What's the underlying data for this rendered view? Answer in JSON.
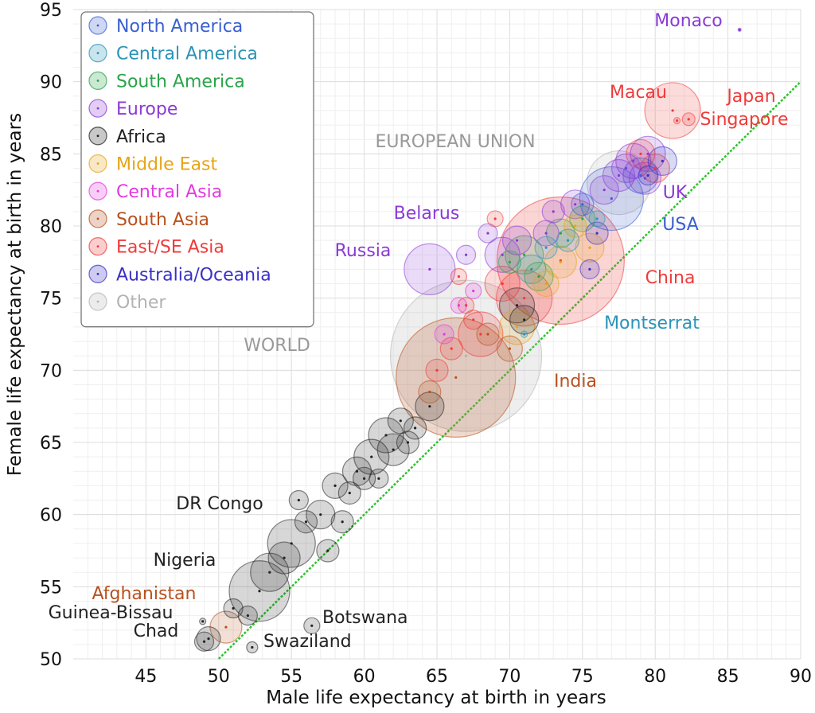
{
  "chart_data": {
    "type": "scatter",
    "title": "",
    "xlabel": "Male life expectancy at birth in years",
    "ylabel": "Female life expectancy at birth in years",
    "xlim": [
      40,
      90
    ],
    "ylim": [
      50,
      95
    ],
    "x_ticks": [
      "45",
      "50",
      "55",
      "60",
      "65",
      "70",
      "75",
      "80",
      "85",
      "90"
    ],
    "y_ticks": [
      "50",
      "55",
      "60",
      "65",
      "70",
      "75",
      "80",
      "85",
      "90",
      "95"
    ],
    "grid": true,
    "legend_position": "top-left",
    "reference_line": {
      "label": "",
      "x": [
        50,
        90
      ],
      "y": [
        50,
        90
      ],
      "color": "#2ec42e"
    },
    "legend": [
      {
        "name": "North America",
        "color": "#3a5fd0"
      },
      {
        "name": "Central America",
        "color": "#2b93b8"
      },
      {
        "name": "South America",
        "color": "#2aa44a"
      },
      {
        "name": "Europe",
        "color": "#8a3ad6"
      },
      {
        "name": "Africa",
        "color": "#222222"
      },
      {
        "name": "Middle East",
        "color": "#e6a417"
      },
      {
        "name": "Central Asia",
        "color": "#e23ae0"
      },
      {
        "name": "South Asia",
        "color": "#b8511e"
      },
      {
        "name": "East/SE Asia",
        "color": "#ef3a3a"
      },
      {
        "name": "Australia/Oceania",
        "color": "#3a30c8"
      },
      {
        "name": "Other",
        "color": "#b3b3b3"
      }
    ],
    "labeled_points": [
      {
        "label": "WORLD",
        "region": "Other",
        "x": 67.0,
        "y": 71.0,
        "r": 95,
        "color": "#b3b3b3"
      },
      {
        "label": "EUROPEAN UNION",
        "region": "Other",
        "x": 77.5,
        "y": 83.0,
        "r": 40,
        "color": "#b3b3b3"
      },
      {
        "label": "India",
        "region": "South Asia",
        "x": 66.3,
        "y": 69.5,
        "r": 75,
        "color": "#b8511e"
      },
      {
        "label": "China",
        "region": "East/SE Asia",
        "x": 73.5,
        "y": 77.6,
        "r": 80,
        "color": "#ef3a3a"
      },
      {
        "label": "USA",
        "region": "North America",
        "x": 77.0,
        "y": 81.9,
        "r": 40,
        "color": "#3a5fd0"
      },
      {
        "label": "UK",
        "region": "Europe",
        "x": 79.3,
        "y": 83.3,
        "r": 20,
        "color": "#8a3ad6"
      },
      {
        "label": "Russia",
        "region": "Europe",
        "x": 64.5,
        "y": 77.0,
        "r": 32,
        "color": "#8a3ad6"
      },
      {
        "label": "Belarus",
        "region": "Europe",
        "x": 67.0,
        "y": 78.0,
        "r": 12,
        "color": "#8a3ad6"
      },
      {
        "label": "Monaco",
        "region": "Europe",
        "x": 85.8,
        "y": 93.6,
        "r": 2,
        "color": "#8a3ad6"
      },
      {
        "label": "Macau",
        "region": "East/SE Asia",
        "x": 81.5,
        "y": 87.3,
        "r": 4,
        "color": "#ef3a3a"
      },
      {
        "label": "Japan",
        "region": "East/SE Asia",
        "x": 81.2,
        "y": 88.0,
        "r": 35,
        "color": "#ef3a3a"
      },
      {
        "label": "Singapore",
        "region": "East/SE Asia",
        "x": 82.3,
        "y": 87.4,
        "r": 8,
        "color": "#ef3a3a"
      },
      {
        "label": "Montserrat",
        "region": "Central America",
        "x": 71.0,
        "y": 72.5,
        "r": 4,
        "color": "#2b93b8"
      },
      {
        "label": "DR Congo",
        "region": "Africa",
        "x": 55.0,
        "y": 58.0,
        "r": 30,
        "color": "#222222"
      },
      {
        "label": "Nigeria",
        "region": "Africa",
        "x": 52.8,
        "y": 54.7,
        "r": 38,
        "color": "#222222"
      },
      {
        "label": "Afghanistan",
        "region": "South Asia",
        "x": 50.5,
        "y": 52.2,
        "r": 20,
        "color": "#b8511e"
      },
      {
        "label": "Guinea-Bissau",
        "region": "Africa",
        "x": 48.9,
        "y": 52.6,
        "r": 4,
        "color": "#222222"
      },
      {
        "label": "Chad",
        "region": "Africa",
        "x": 49.3,
        "y": 51.4,
        "r": 15,
        "color": "#222222"
      },
      {
        "label": "Botswana",
        "region": "Africa",
        "x": 56.4,
        "y": 52.3,
        "r": 10,
        "color": "#222222"
      },
      {
        "label": "Swaziland",
        "region": "Africa",
        "x": 52.3,
        "y": 50.8,
        "r": 7,
        "color": "#222222"
      }
    ],
    "other_points": [
      {
        "region": "Africa",
        "x": 57.5,
        "y": 57.5,
        "r": 14
      },
      {
        "region": "Africa",
        "x": 58.5,
        "y": 59.5,
        "r": 14
      },
      {
        "region": "Africa",
        "x": 57.0,
        "y": 60.0,
        "r": 18
      },
      {
        "region": "Africa",
        "x": 59.0,
        "y": 61.5,
        "r": 14
      },
      {
        "region": "Africa",
        "x": 59.5,
        "y": 63.0,
        "r": 18
      },
      {
        "region": "Africa",
        "x": 60.5,
        "y": 64.0,
        "r": 22
      },
      {
        "region": "Africa",
        "x": 61.5,
        "y": 65.5,
        "r": 22
      },
      {
        "region": "Africa",
        "x": 62.5,
        "y": 66.5,
        "r": 16
      },
      {
        "region": "Africa",
        "x": 61.0,
        "y": 62.5,
        "r": 12
      },
      {
        "region": "Africa",
        "x": 62.0,
        "y": 64.5,
        "r": 20
      },
      {
        "region": "Africa",
        "x": 63.0,
        "y": 65.0,
        "r": 14
      },
      {
        "region": "Africa",
        "x": 54.5,
        "y": 57.0,
        "r": 20
      },
      {
        "region": "Africa",
        "x": 53.5,
        "y": 56.0,
        "r": 24
      },
      {
        "region": "Africa",
        "x": 56.0,
        "y": 59.5,
        "r": 14
      },
      {
        "region": "Africa",
        "x": 55.5,
        "y": 61.0,
        "r": 12
      },
      {
        "region": "Africa",
        "x": 51.0,
        "y": 53.5,
        "r": 12
      },
      {
        "region": "Africa",
        "x": 52.0,
        "y": 53.0,
        "r": 12
      },
      {
        "region": "Africa",
        "x": 49.0,
        "y": 51.2,
        "r": 12
      },
      {
        "region": "Africa",
        "x": 64.5,
        "y": 67.5,
        "r": 18
      },
      {
        "region": "Africa",
        "x": 63.5,
        "y": 66.0,
        "r": 14
      },
      {
        "region": "Africa",
        "x": 58.0,
        "y": 62.0,
        "r": 16
      },
      {
        "region": "Africa",
        "x": 60.0,
        "y": 62.5,
        "r": 14
      },
      {
        "region": "Africa",
        "x": 70.5,
        "y": 74.5,
        "r": 22
      },
      {
        "region": "Africa",
        "x": 71.0,
        "y": 73.5,
        "r": 18
      },
      {
        "region": "South Asia",
        "x": 64.5,
        "y": 68.5,
        "r": 14
      },
      {
        "region": "South Asia",
        "x": 68.5,
        "y": 72.5,
        "r": 14
      },
      {
        "region": "South Asia",
        "x": 70.0,
        "y": 71.5,
        "r": 16
      },
      {
        "region": "East/SE Asia",
        "x": 65.0,
        "y": 70.0,
        "r": 14
      },
      {
        "region": "East/SE Asia",
        "x": 66.0,
        "y": 71.5,
        "r": 14
      },
      {
        "region": "East/SE Asia",
        "x": 67.5,
        "y": 73.5,
        "r": 12
      },
      {
        "region": "East/SE Asia",
        "x": 68.0,
        "y": 72.5,
        "r": 28
      },
      {
        "region": "East/SE Asia",
        "x": 69.5,
        "y": 76.0,
        "r": 22
      },
      {
        "region": "East/SE Asia",
        "x": 71.0,
        "y": 75.0,
        "r": 35
      },
      {
        "region": "East/SE Asia",
        "x": 69.0,
        "y": 80.5,
        "r": 10
      },
      {
        "region": "East/SE Asia",
        "x": 66.5,
        "y": 76.5,
        "r": 10
      },
      {
        "region": "East/SE Asia",
        "x": 67.0,
        "y": 74.5,
        "r": 10
      },
      {
        "region": "East/SE Asia",
        "x": 79.0,
        "y": 85.0,
        "r": 18
      },
      {
        "region": "East/SE Asia",
        "x": 80.0,
        "y": 84.0,
        "r": 18
      },
      {
        "region": "Middle East",
        "x": 70.5,
        "y": 73.0,
        "r": 22
      },
      {
        "region": "Middle East",
        "x": 73.5,
        "y": 77.5,
        "r": 20
      },
      {
        "region": "Middle East",
        "x": 75.5,
        "y": 78.5,
        "r": 18
      },
      {
        "region": "Middle East",
        "x": 72.5,
        "y": 76.0,
        "r": 16
      },
      {
        "region": "Middle East",
        "x": 74.5,
        "y": 80.0,
        "r": 14
      },
      {
        "region": "Central Asia",
        "x": 65.5,
        "y": 72.5,
        "r": 12
      },
      {
        "region": "Central Asia",
        "x": 66.5,
        "y": 74.5,
        "r": 10
      },
      {
        "region": "Central Asia",
        "x": 67.5,
        "y": 75.5,
        "r": 10
      },
      {
        "region": "Central America",
        "x": 71.5,
        "y": 77.0,
        "r": 18
      },
      {
        "region": "Central America",
        "x": 72.5,
        "y": 78.5,
        "r": 14
      },
      {
        "region": "Central America",
        "x": 74.0,
        "y": 79.0,
        "r": 14
      },
      {
        "region": "Central America",
        "x": 76.0,
        "y": 80.5,
        "r": 10
      },
      {
        "region": "South America",
        "x": 71.0,
        "y": 78.0,
        "r": 24
      },
      {
        "region": "South America",
        "x": 72.0,
        "y": 76.5,
        "r": 18
      },
      {
        "region": "South America",
        "x": 73.5,
        "y": 79.5,
        "r": 18
      },
      {
        "region": "South America",
        "x": 75.0,
        "y": 80.5,
        "r": 16
      },
      {
        "region": "South America",
        "x": 70.0,
        "y": 77.5,
        "r": 14
      },
      {
        "region": "Europe",
        "x": 69.5,
        "y": 78.0,
        "r": 22
      },
      {
        "region": "Europe",
        "x": 70.5,
        "y": 79.0,
        "r": 18
      },
      {
        "region": "Europe",
        "x": 72.5,
        "y": 79.5,
        "r": 16
      },
      {
        "region": "Europe",
        "x": 74.5,
        "y": 81.5,
        "r": 18
      },
      {
        "region": "Europe",
        "x": 76.5,
        "y": 82.5,
        "r": 18
      },
      {
        "region": "Europe",
        "x": 77.5,
        "y": 83.5,
        "r": 20
      },
      {
        "region": "Europe",
        "x": 78.5,
        "y": 84.5,
        "r": 22
      },
      {
        "region": "Europe",
        "x": 79.5,
        "y": 85.0,
        "r": 22
      },
      {
        "region": "Europe",
        "x": 78.0,
        "y": 84.0,
        "r": 18
      },
      {
        "region": "Europe",
        "x": 68.5,
        "y": 79.5,
        "r": 12
      },
      {
        "region": "Europe",
        "x": 73.0,
        "y": 81.0,
        "r": 14
      },
      {
        "region": "Australia/Oceania",
        "x": 80.5,
        "y": 84.5,
        "r": 18
      },
      {
        "region": "Australia/Oceania",
        "x": 79.5,
        "y": 83.5,
        "r": 12
      },
      {
        "region": "Australia/Oceania",
        "x": 76.0,
        "y": 79.5,
        "r": 14
      },
      {
        "region": "Australia/Oceania",
        "x": 75.5,
        "y": 77.0,
        "r": 12
      },
      {
        "region": "North America",
        "x": 79.0,
        "y": 83.5,
        "r": 22
      },
      {
        "region": "North America",
        "x": 75.0,
        "y": 81.5,
        "r": 14
      }
    ]
  }
}
